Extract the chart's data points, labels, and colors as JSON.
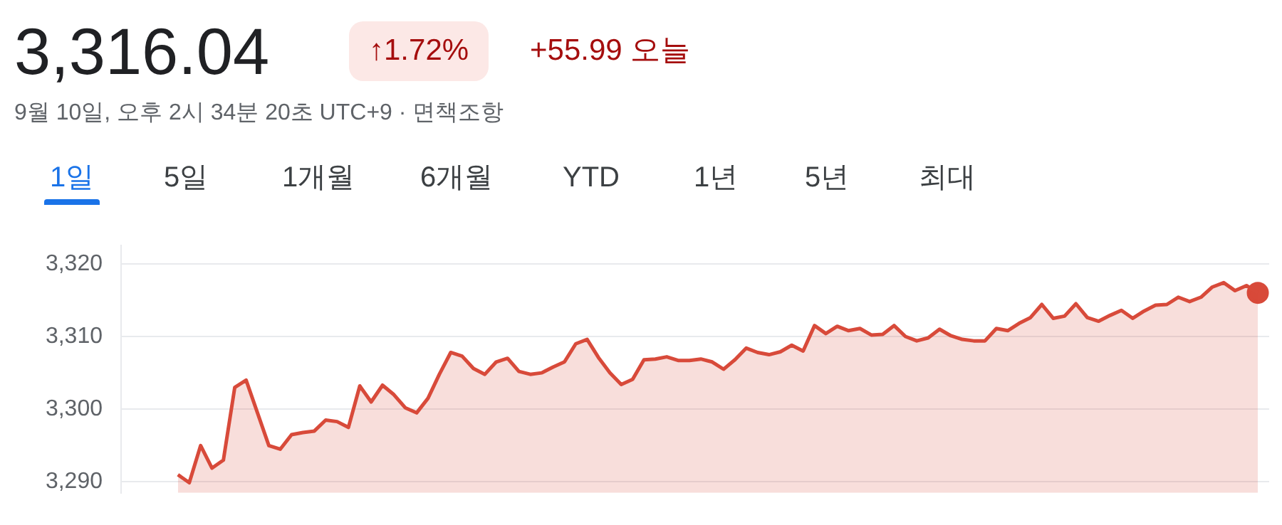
{
  "chart_data": {
    "type": "area",
    "title": "3,316.04",
    "subtitle": "9월 10일, 오후 2시 34분 20초 UTC+9 · 면책조항",
    "annotations": [
      "↑1.72%",
      "+55.99 오늘",
      "1일",
      "5일",
      "1개월",
      "6개월",
      "YTD",
      "1년",
      "5년",
      "최대"
    ],
    "categories": [
      null,
      null,
      null,
      null,
      null,
      null,
      null,
      null,
      null,
      null,
      null,
      null,
      null,
      null,
      null,
      null,
      null,
      null,
      null,
      null,
      null,
      null,
      null,
      null,
      null,
      null,
      null,
      null,
      null,
      null,
      null,
      null,
      null,
      null,
      null,
      null,
      null,
      null,
      null,
      null,
      null,
      null,
      null,
      null,
      null,
      null,
      null,
      null,
      null,
      null,
      null,
      null,
      null,
      null,
      null,
      null,
      null,
      null,
      null,
      null,
      null,
      null,
      null,
      null,
      null,
      null,
      null,
      null,
      null,
      null,
      null,
      null,
      null,
      null,
      null,
      null,
      null,
      null,
      null,
      null,
      null,
      null,
      null,
      null,
      null,
      null,
      null,
      null,
      null,
      null,
      null,
      null,
      null,
      null,
      null,
      null,
      null,
      null,
      null,
      null,
      null,
      null
    ],
    "series": [
      {
        "color": "#d84a3a",
        "values": [
          null,
          null,
          null,
          null,
          null,
          3291,
          3289.9,
          3295,
          3291.9,
          3293,
          3303,
          3304,
          3299.5,
          3295,
          3294.5,
          3296.5,
          3296.8,
          3297,
          3298.5,
          3298.3,
          3297.5,
          3303.2,
          3301,
          3303.3,
          3302,
          3300.2,
          3299.5,
          3301.5,
          3304.8,
          3307.8,
          3307.3,
          3305.6,
          3304.8,
          3306.5,
          3307,
          3305.2,
          3304.8,
          3305,
          3305.8,
          3306.5,
          3309,
          3309.6,
          3307.1,
          3305,
          3303.4,
          3304.1,
          3306.8,
          3306.9,
          3307.2,
          3306.7,
          3306.7,
          3306.9,
          3306.5,
          3305.5,
          3306.8,
          3308.4,
          3307.8,
          3307.5,
          3307.9,
          3308.8,
          3308,
          3311.5,
          3310.4,
          3311.4,
          3310.8,
          3311.1,
          3310.2,
          3310.3,
          3311.5,
          3310,
          3309.4,
          3309.8,
          3311,
          3310.1,
          3309.6,
          3309.4,
          3309.4,
          3311.1,
          3310.8,
          3311.8,
          3312.6,
          3314.4,
          3312.5,
          3312.8,
          3314.5,
          3312.6,
          3312.1,
          3312.9,
          3313.6,
          3312.5,
          3313.5,
          3314.3,
          3314.4,
          3315.4,
          3314.8,
          3315.4,
          3316.8,
          3317.4,
          3316.3,
          3317,
          3316.0,
          null
        ]
      },
      {
        "type": "scatter",
        "color": "#d84a3a",
        "marker": "circle",
        "values": [
          null,
          null,
          null,
          null,
          null,
          null,
          null,
          null,
          null,
          null,
          null,
          null,
          null,
          null,
          null,
          null,
          null,
          null,
          null,
          null,
          null,
          null,
          null,
          null,
          null,
          null,
          null,
          null,
          null,
          null,
          null,
          null,
          null,
          null,
          null,
          null,
          null,
          null,
          null,
          null,
          null,
          null,
          null,
          null,
          null,
          null,
          null,
          null,
          null,
          null,
          null,
          null,
          null,
          null,
          null,
          null,
          null,
          null,
          null,
          null,
          null,
          null,
          null,
          null,
          null,
          null,
          null,
          null,
          null,
          null,
          null,
          null,
          null,
          null,
          null,
          null,
          null,
          null,
          null,
          null,
          null,
          null,
          null,
          null,
          null,
          null,
          null,
          null,
          null,
          null,
          null,
          null,
          null,
          null,
          null,
          null,
          null,
          null,
          null,
          null,
          3316.0,
          null
        ]
      }
    ],
    "ylim": [
      3288.5,
      3322.5
    ],
    "yticks": [
      {
        "value": 3290,
        "label": "3,290"
      },
      {
        "value": 3300,
        "label": "3,300"
      },
      {
        "value": 3310,
        "label": "3,310"
      },
      {
        "value": 3320,
        "label": "3,320"
      }
    ],
    "grid": "y",
    "legend": false,
    "tick_labels": "y"
  }
}
